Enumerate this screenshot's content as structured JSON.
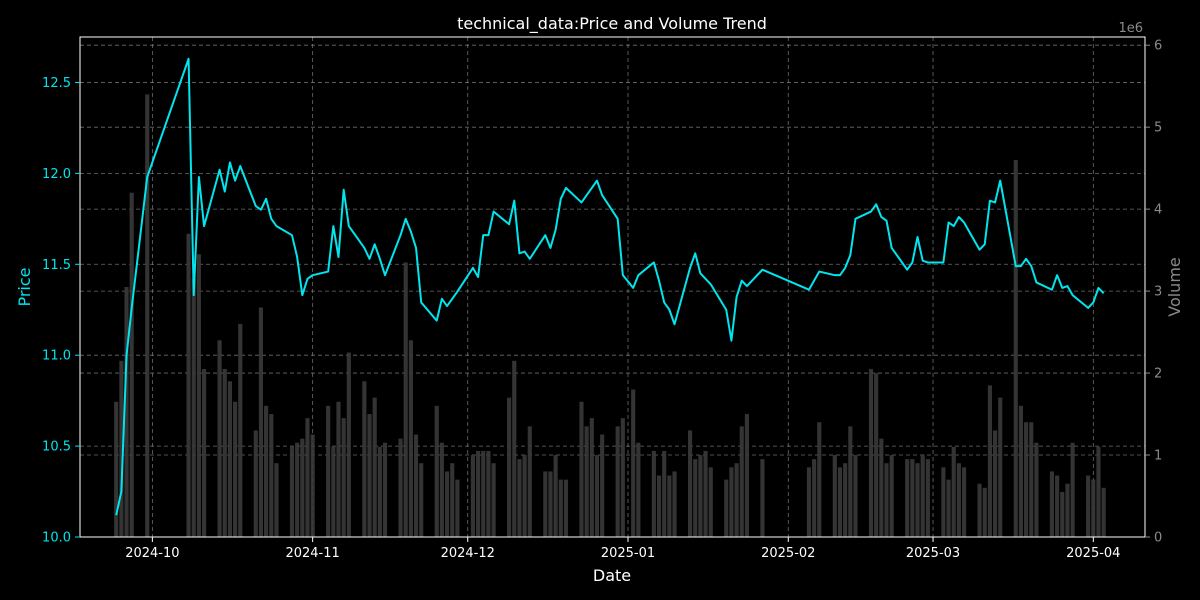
{
  "chart_data": {
    "type": "line",
    "title": "technical_data:Price and Volume Trend",
    "xlabel": "Date",
    "ylabel": "Price",
    "y2label": "Volume",
    "y2_scale_label": "1e6",
    "xlim": [
      "2024-09-17",
      "2025-04-11"
    ],
    "ylim": [
      10.0,
      12.75
    ],
    "y2lim": [
      0,
      6100000
    ],
    "x_ticks": [
      "2024-10-01",
      "2024-11-01",
      "2024-12-01",
      "2025-01-01",
      "2025-02-01",
      "2025-03-01",
      "2025-04-01"
    ],
    "x_tick_labels": [
      "2024-10",
      "2024-11",
      "2024-12",
      "2025-01",
      "2025-02",
      "2025-03",
      "2025-04"
    ],
    "y_ticks": [
      10.0,
      10.5,
      11.0,
      11.5,
      12.0,
      12.5
    ],
    "y_tick_labels": [
      "10.0",
      "10.5",
      "11.0",
      "11.5",
      "12.0",
      "12.5"
    ],
    "y2_ticks": [
      0,
      1,
      2,
      3,
      4,
      5,
      6
    ],
    "y2_tick_labels": [
      "0",
      "1",
      "2",
      "3",
      "4",
      "5",
      "6"
    ],
    "grid": true,
    "colors": {
      "price": "#00e5ee",
      "volume": "#3a3a3a",
      "price_axis": "#00e5ee",
      "volume_axis": "#8a8a8a",
      "grid": "#888888"
    },
    "series": [
      {
        "type": "line",
        "axis": "left",
        "x": [
          "2024-09-24",
          "2024-09-25",
          "2024-09-26",
          "2024-09-27",
          "2024-09-30",
          "2024-10-08",
          "2024-10-09",
          "2024-10-10",
          "2024-10-11",
          "2024-10-14",
          "2024-10-15",
          "2024-10-16",
          "2024-10-17",
          "2024-10-18",
          "2024-10-21",
          "2024-10-22",
          "2024-10-23",
          "2024-10-24",
          "2024-10-25",
          "2024-10-28",
          "2024-10-29",
          "2024-10-30",
          "2024-10-31",
          "2024-11-01",
          "2024-11-04",
          "2024-11-05",
          "2024-11-06",
          "2024-11-07",
          "2024-11-08",
          "2024-11-11",
          "2024-11-12",
          "2024-11-13",
          "2024-11-14",
          "2024-11-15",
          "2024-11-18",
          "2024-11-19",
          "2024-11-20",
          "2024-11-21",
          "2024-11-22",
          "2024-11-25",
          "2024-11-26",
          "2024-11-27",
          "2024-11-28",
          "2024-11-29",
          "2024-12-02",
          "2024-12-03",
          "2024-12-04",
          "2024-12-05",
          "2024-12-06",
          "2024-12-09",
          "2024-12-10",
          "2024-12-11",
          "2024-12-12",
          "2024-12-13",
          "2024-12-16",
          "2024-12-17",
          "2024-12-18",
          "2024-12-19",
          "2024-12-20",
          "2024-12-23",
          "2024-12-24",
          "2024-12-25",
          "2024-12-26",
          "2024-12-27",
          "2024-12-30",
          "2024-12-31",
          "2025-01-02",
          "2025-01-03",
          "2025-01-06",
          "2025-01-07",
          "2025-01-08",
          "2025-01-09",
          "2025-01-10",
          "2025-01-13",
          "2025-01-14",
          "2025-01-15",
          "2025-01-16",
          "2025-01-17",
          "2025-01-20",
          "2025-01-21",
          "2025-01-22",
          "2025-01-23",
          "2025-01-24",
          "2025-01-27",
          "2025-02-05",
          "2025-02-06",
          "2025-02-07",
          "2025-02-10",
          "2025-02-11",
          "2025-02-12",
          "2025-02-13",
          "2025-02-14",
          "2025-02-17",
          "2025-02-18",
          "2025-02-19",
          "2025-02-20",
          "2025-02-21",
          "2025-02-24",
          "2025-02-25",
          "2025-02-26",
          "2025-02-27",
          "2025-02-28",
          "2025-03-03",
          "2025-03-04",
          "2025-03-05",
          "2025-03-06",
          "2025-03-07",
          "2025-03-10",
          "2025-03-11",
          "2025-03-12",
          "2025-03-13",
          "2025-03-14",
          "2025-03-17",
          "2025-03-18",
          "2025-03-19",
          "2025-03-20",
          "2025-03-21",
          "2025-03-24",
          "2025-03-25",
          "2025-03-26",
          "2025-03-27",
          "2025-03-28",
          "2025-03-31",
          "2025-04-01",
          "2025-04-02",
          "2025-04-03"
        ],
        "y": [
          10.12,
          10.25,
          11.0,
          11.26,
          11.98,
          12.63,
          11.33,
          11.98,
          11.71,
          12.02,
          11.9,
          12.06,
          11.96,
          12.04,
          11.82,
          11.8,
          11.86,
          11.75,
          11.71,
          11.66,
          11.54,
          11.33,
          11.42,
          11.44,
          11.46,
          11.71,
          11.54,
          11.91,
          11.71,
          11.59,
          11.53,
          11.61,
          11.53,
          11.44,
          11.66,
          11.75,
          11.68,
          11.59,
          11.29,
          11.19,
          11.31,
          11.27,
          11.31,
          11.35,
          11.48,
          11.43,
          11.66,
          11.66,
          11.79,
          11.72,
          11.85,
          11.56,
          11.57,
          11.53,
          11.66,
          11.59,
          11.69,
          11.86,
          11.92,
          11.84,
          11.88,
          11.92,
          11.96,
          11.88,
          11.75,
          11.44,
          11.37,
          11.44,
          11.51,
          11.41,
          11.29,
          11.25,
          11.17,
          11.48,
          11.56,
          11.45,
          11.42,
          11.39,
          11.25,
          11.08,
          11.32,
          11.41,
          11.38,
          11.47,
          11.36,
          11.41,
          11.46,
          11.44,
          11.44,
          11.48,
          11.55,
          11.75,
          11.79,
          11.83,
          11.76,
          11.74,
          11.59,
          11.47,
          11.51,
          11.65,
          11.52,
          11.51,
          11.51,
          11.73,
          11.71,
          11.76,
          11.73,
          11.58,
          11.61,
          11.85,
          11.84,
          11.96,
          11.49,
          11.49,
          11.53,
          11.49,
          11.4,
          11.36,
          11.44,
          11.37,
          11.38,
          11.33,
          11.26,
          11.29,
          11.37,
          11.34
        ]
      },
      {
        "type": "bar",
        "axis": "right",
        "x": [
          "2024-09-24",
          "2024-09-25",
          "2024-09-26",
          "2024-09-27",
          "2024-09-30",
          "2024-10-08",
          "2024-10-09",
          "2024-10-10",
          "2024-10-11",
          "2024-10-14",
          "2024-10-15",
          "2024-10-16",
          "2024-10-17",
          "2024-10-18",
          "2024-10-21",
          "2024-10-22",
          "2024-10-23",
          "2024-10-24",
          "2024-10-25",
          "2024-10-28",
          "2024-10-29",
          "2024-10-30",
          "2024-10-31",
          "2024-11-01",
          "2024-11-04",
          "2024-11-05",
          "2024-11-06",
          "2024-11-07",
          "2024-11-08",
          "2024-11-11",
          "2024-11-12",
          "2024-11-13",
          "2024-11-14",
          "2024-11-15",
          "2024-11-18",
          "2024-11-19",
          "2024-11-20",
          "2024-11-21",
          "2024-11-22",
          "2024-11-25",
          "2024-11-26",
          "2024-11-27",
          "2024-11-28",
          "2024-11-29",
          "2024-12-02",
          "2024-12-03",
          "2024-12-04",
          "2024-12-05",
          "2024-12-06",
          "2024-12-09",
          "2024-12-10",
          "2024-12-11",
          "2024-12-12",
          "2024-12-13",
          "2024-12-16",
          "2024-12-17",
          "2024-12-18",
          "2024-12-19",
          "2024-12-20",
          "2024-12-23",
          "2024-12-24",
          "2024-12-25",
          "2024-12-26",
          "2024-12-27",
          "2024-12-30",
          "2024-12-31",
          "2025-01-02",
          "2025-01-03",
          "2025-01-06",
          "2025-01-07",
          "2025-01-08",
          "2025-01-09",
          "2025-01-10",
          "2025-01-13",
          "2025-01-14",
          "2025-01-15",
          "2025-01-16",
          "2025-01-17",
          "2025-01-20",
          "2025-01-21",
          "2025-01-22",
          "2025-01-23",
          "2025-01-24",
          "2025-01-27",
          "2025-02-05",
          "2025-02-06",
          "2025-02-07",
          "2025-02-10",
          "2025-02-11",
          "2025-02-12",
          "2025-02-13",
          "2025-02-14",
          "2025-02-17",
          "2025-02-18",
          "2025-02-19",
          "2025-02-20",
          "2025-02-21",
          "2025-02-24",
          "2025-02-25",
          "2025-02-26",
          "2025-02-27",
          "2025-02-28",
          "2025-03-03",
          "2025-03-04",
          "2025-03-05",
          "2025-03-06",
          "2025-03-07",
          "2025-03-10",
          "2025-03-11",
          "2025-03-12",
          "2025-03-13",
          "2025-03-14",
          "2025-03-17",
          "2025-03-18",
          "2025-03-19",
          "2025-03-20",
          "2025-03-21",
          "2025-03-24",
          "2025-03-25",
          "2025-03-26",
          "2025-03-27",
          "2025-03-28",
          "2025-03-31",
          "2025-04-01",
          "2025-04-02",
          "2025-04-03"
        ],
        "y": [
          1650000,
          2150000,
          3050000,
          4200000,
          5400000,
          3700000,
          3150000,
          3450000,
          2050000,
          2400000,
          2050000,
          1900000,
          1650000,
          2600000,
          1300000,
          2800000,
          1600000,
          1500000,
          900000,
          1100000,
          1150000,
          1200000,
          1450000,
          1250000,
          1600000,
          1100000,
          1650000,
          1450000,
          2250000,
          1900000,
          1500000,
          1700000,
          1100000,
          1150000,
          1200000,
          3350000,
          2400000,
          1250000,
          900000,
          1600000,
          1150000,
          800000,
          900000,
          700000,
          1000000,
          1050000,
          1050000,
          1050000,
          900000,
          1700000,
          2150000,
          950000,
          1000000,
          1350000,
          800000,
          800000,
          1000000,
          700000,
          700000,
          1650000,
          1350000,
          1450000,
          1000000,
          1250000,
          1350000,
          1450000,
          1800000,
          1150000,
          1050000,
          750000,
          1050000,
          750000,
          800000,
          1300000,
          950000,
          1000000,
          1050000,
          850000,
          700000,
          850000,
          900000,
          1350000,
          1500000,
          950000,
          850000,
          950000,
          1400000,
          1000000,
          850000,
          900000,
          1350000,
          1000000,
          2050000,
          2000000,
          1200000,
          900000,
          1000000,
          950000,
          950000,
          900000,
          1000000,
          950000,
          850000,
          700000,
          1100000,
          900000,
          850000,
          650000,
          600000,
          1850000,
          1300000,
          1700000,
          4600000,
          1600000,
          1400000,
          1400000,
          1150000,
          800000,
          750000,
          550000,
          650000,
          1150000,
          750000,
          700000,
          1100000,
          600000
        ]
      }
    ]
  }
}
